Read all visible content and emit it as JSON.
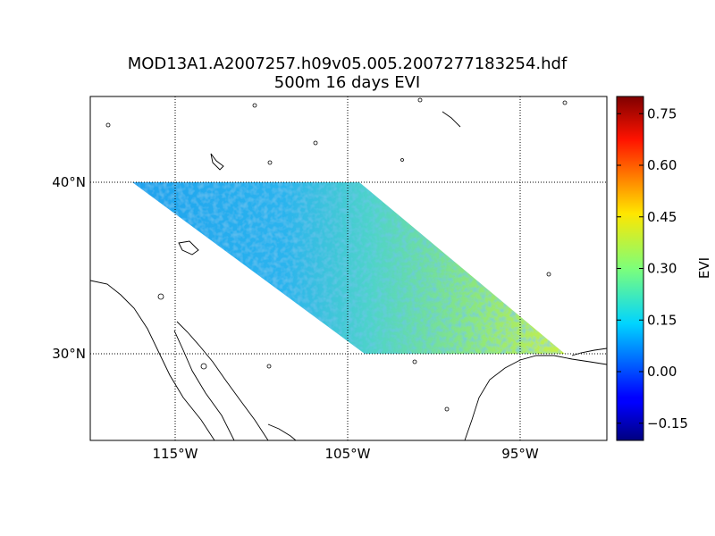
{
  "figure": {
    "title_line1": "MOD13A1.A2007257.h09v05.005.2007277183254.hdf",
    "title_line2": "500m 16 days EVI"
  },
  "map": {
    "lat_labels": [
      "40°N",
      "30°N"
    ],
    "lon_labels": [
      "115°W",
      "105°W",
      "95°W"
    ],
    "lat_values": [
      40,
      30
    ],
    "lon_values": [
      -115,
      -105,
      -95
    ],
    "lon_range": [
      -120,
      -90
    ],
    "lat_range": [
      25,
      45
    ],
    "gridlines": "dotted",
    "data_swath": "MODIS sinusoidal tile h09v05 (30°N–40°N)"
  },
  "colorbar": {
    "label": "EVI",
    "colormap": "jet",
    "range": [
      -0.2,
      0.8
    ],
    "tick_labels": [
      "0.75",
      "0.60",
      "0.45",
      "0.30",
      "0.15",
      "0.00",
      "−0.15"
    ],
    "tick_values": [
      0.75,
      0.6,
      0.45,
      0.3,
      0.15,
      0.0,
      -0.15
    ]
  },
  "colors": {
    "grid": "#000000",
    "coastline": "#000000",
    "dominant_evi": "#2fb8e8"
  }
}
